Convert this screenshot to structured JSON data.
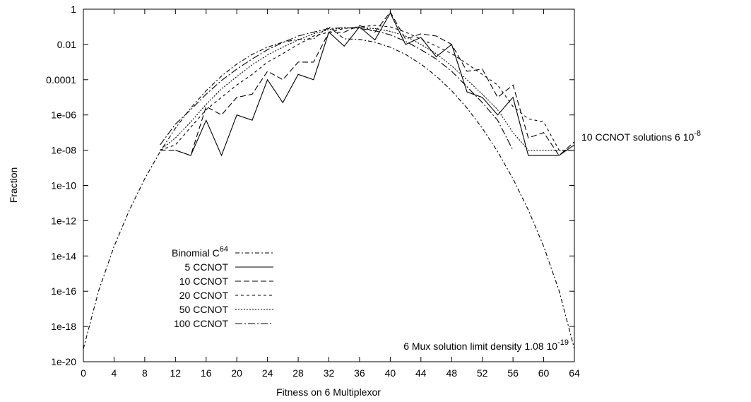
{
  "chart_data": {
    "type": "line",
    "xlabel": "Fitness on 6 Multiplexor",
    "ylabel": "Fraction",
    "xlim": [
      0,
      64
    ],
    "ylim": [
      "1e-20",
      "1"
    ],
    "yscale": "log",
    "grid": false,
    "legend_position": "bottom-left",
    "x_ticks": [
      "0",
      "4",
      "8",
      "12",
      "16",
      "20",
      "24",
      "28",
      "32",
      "36",
      "40",
      "44",
      "48",
      "52",
      "56",
      "60",
      "64"
    ],
    "y_ticks": [
      "1",
      "0.01",
      "0.0001",
      "1e-06",
      "1e-08",
      "1e-10",
      "1e-12",
      "1e-14",
      "1e-16",
      "1e-18",
      "1e-20"
    ],
    "annotations": [
      {
        "base": "10 CCNOT solutions 6 10",
        "exp": "-8"
      },
      {
        "base": "6 Mux solution limit density 1.08 10",
        "exp": "-19"
      }
    ],
    "series": [
      {
        "name": "Binomial C",
        "name_sup": "64",
        "dash": "6,3,2,3",
        "x": [
          0,
          2,
          4,
          6,
          8,
          10,
          12,
          14,
          16,
          18,
          20,
          22,
          24,
          26,
          28,
          30,
          32,
          34,
          36,
          38,
          40,
          42,
          44,
          46,
          48,
          50,
          52,
          54,
          56,
          58,
          60,
          62,
          64
        ],
        "y": [
          5.42e-20,
          1.09e-16,
          3.44e-14,
          4.08e-12,
          2.41e-10,
          8.23e-09,
          1.76e-07,
          2.47e-06,
          2.37e-05,
          0.00016,
          0.000771,
          0.00271,
          0.007,
          0.0134,
          0.0192,
          0.0207,
          0.0993,
          0.0207,
          0.0192,
          0.0134,
          0.007,
          0.00271,
          0.000771,
          0.00016,
          2.37e-05,
          2.47e-06,
          1.76e-07,
          8.23e-09,
          2.41e-10,
          4.08e-12,
          3.44e-14,
          1.09e-16,
          5.42e-20
        ]
      },
      {
        "name": "5 CCNOT",
        "dash": "",
        "x": [
          12,
          14,
          16,
          18,
          20,
          22,
          24,
          26,
          28,
          30,
          32,
          34,
          36,
          38,
          40,
          42,
          44,
          46,
          48,
          50,
          52,
          54,
          56,
          58,
          60,
          62,
          64
        ],
        "y": [
          1e-08,
          5e-09,
          5e-07,
          5e-09,
          1e-06,
          5e-07,
          0.0001,
          5e-06,
          0.0002,
          0.0001,
          0.05,
          0.008,
          0.1,
          0.018,
          0.6,
          0.01,
          0.025,
          0.002,
          0.01,
          2e-05,
          1e-05,
          1e-06,
          1e-05,
          5e-09,
          5e-09,
          5e-09,
          2e-08
        ]
      },
      {
        "name": "10 CCNOT",
        "dash": "8,4",
        "x": [
          10,
          12,
          14,
          16,
          18,
          20,
          22,
          24,
          26,
          28,
          30,
          32,
          34,
          36,
          38,
          40,
          42,
          44,
          46,
          48,
          50,
          52,
          54,
          56,
          58,
          60,
          62,
          64
        ],
        "y": [
          1e-08,
          1e-08,
          5e-09,
          3e-06,
          1e-06,
          1e-05,
          1.5e-05,
          0.0003,
          0.0001,
          0.001,
          0.001,
          0.05,
          0.05,
          0.12,
          0.05,
          0.7,
          0.02,
          0.04,
          0.03,
          0.01,
          0.0003,
          0.0004,
          1e-05,
          5e-05,
          5e-08,
          1e-07,
          5e-09,
          3e-08
        ]
      },
      {
        "name": "20 CCNOT",
        "dash": "4,4",
        "x": [
          10,
          12,
          14,
          16,
          18,
          20,
          22,
          24,
          26,
          28,
          30,
          32,
          34,
          36,
          38,
          40,
          42,
          44,
          46,
          48,
          50,
          52,
          54,
          56,
          58,
          60,
          62,
          64
        ],
        "y": [
          1e-08,
          2e-08,
          2e-07,
          2e-06,
          1e-05,
          5e-05,
          0.0002,
          0.001,
          0.003,
          0.01,
          0.03,
          0.05,
          0.08,
          0.1,
          0.12,
          0.1,
          0.05,
          0.02,
          0.008,
          0.003,
          0.0008,
          0.0002,
          5e-05,
          3e-06,
          6e-07,
          4e-07,
          1e-08,
          1e-08
        ]
      },
      {
        "name": "50 CCNOT",
        "dash": "2,2",
        "x": [
          10,
          12,
          14,
          16,
          18,
          20,
          22,
          24,
          26,
          28,
          30,
          32,
          34,
          36,
          38,
          40,
          42,
          44,
          46,
          48,
          50,
          52,
          54,
          56,
          58,
          60,
          62,
          64
        ],
        "y": [
          1e-08,
          5e-08,
          4e-07,
          4e-06,
          3e-05,
          0.00015,
          0.0007,
          0.0025,
          0.007,
          0.018,
          0.04,
          0.07,
          0.085,
          0.09,
          0.08,
          0.055,
          0.03,
          0.01,
          0.003,
          0.0006,
          0.0001,
          1.5e-05,
          2e-06,
          1e-07,
          1e-08,
          1e-08,
          1e-08,
          1e-08
        ]
      },
      {
        "name": "100 CCNOT",
        "dash": "10,3,2,3",
        "x": [
          10,
          12,
          14,
          16,
          18,
          20,
          22,
          24,
          26,
          28,
          30,
          32,
          34,
          36,
          38,
          40,
          42,
          44,
          46,
          48,
          50,
          52,
          54,
          56
        ],
        "y": [
          2e-08,
          3e-07,
          2e-06,
          1.5e-05,
          9e-05,
          0.0004,
          0.0015,
          0.005,
          0.013,
          0.03,
          0.05,
          0.08,
          0.09,
          0.08,
          0.06,
          0.035,
          0.015,
          0.005,
          0.0015,
          0.0003,
          4e-05,
          5e-06,
          5e-07,
          1e-08
        ]
      }
    ]
  }
}
